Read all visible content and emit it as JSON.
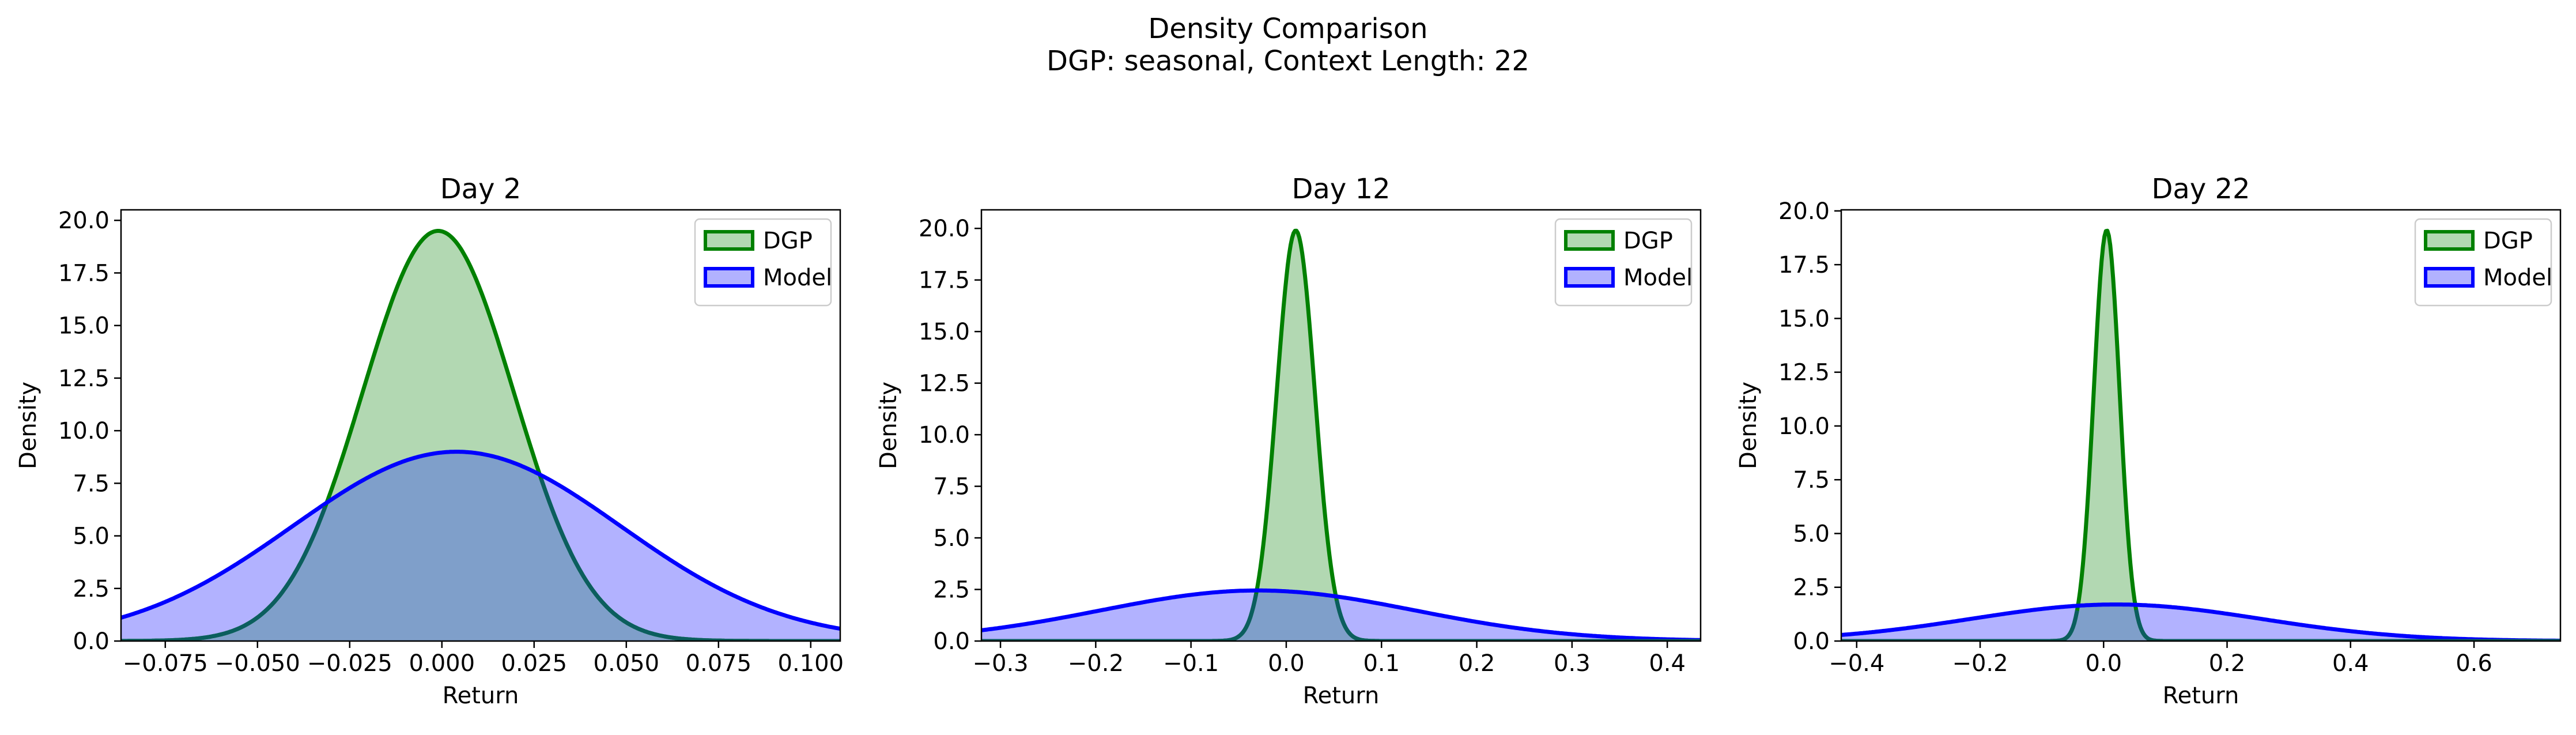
{
  "figure": {
    "title": "Density Comparison",
    "subtitle": "DGP: seasonal, Context Length: 22"
  },
  "colors": {
    "dgp_line": "#008000",
    "dgp_fill": "#b2d8b2",
    "model_line": "#0000ff",
    "model_fill": "#b2b2ff",
    "overlap_fill": "#7f9fca"
  },
  "chart_data": [
    {
      "type": "area",
      "title": "Day 2",
      "xlabel": "Return",
      "ylabel": "Density",
      "xlim": [
        -0.087,
        0.108
      ],
      "ylim": [
        0,
        20.5
      ],
      "xticks": [
        -0.075,
        -0.05,
        -0.025,
        0.0,
        0.025,
        0.05,
        0.075,
        0.1
      ],
      "xtick_labels": [
        "−0.075",
        "−0.050",
        "−0.025",
        "0.000",
        "0.025",
        "0.050",
        "0.075",
        "0.100"
      ],
      "yticks": [
        0,
        2.5,
        5,
        7.5,
        10,
        12.5,
        15,
        17.5,
        20
      ],
      "ytick_labels": [
        "0.0",
        "2.5",
        "5.0",
        "7.5",
        "10.0",
        "12.5",
        "15.0",
        "17.5",
        "20.0"
      ],
      "legend": "top-right",
      "grid": false,
      "series": [
        {
          "name": "DGP",
          "distribution": "normal",
          "mean": -0.001,
          "std": 0.0205,
          "peak": 19.5
        },
        {
          "name": "Model",
          "distribution": "normal",
          "mean": 0.004,
          "std": 0.0445,
          "peak": 9.0
        }
      ]
    },
    {
      "type": "area",
      "title": "Day 12",
      "xlabel": "Return",
      "ylabel": "Density",
      "xlim": [
        -0.32,
        0.435
      ],
      "ylim": [
        0,
        20.9
      ],
      "xticks": [
        -0.3,
        -0.2,
        -0.1,
        0.0,
        0.1,
        0.2,
        0.3,
        0.4
      ],
      "xtick_labels": [
        "−0.3",
        "−0.2",
        "−0.1",
        "0.0",
        "0.1",
        "0.2",
        "0.3",
        "0.4"
      ],
      "yticks": [
        0,
        2.5,
        5,
        7.5,
        10,
        12.5,
        15,
        17.5,
        20
      ],
      "ytick_labels": [
        "0.0",
        "2.5",
        "5.0",
        "7.5",
        "10.0",
        "12.5",
        "15.0",
        "17.5",
        "20.0"
      ],
      "legend": "top-right",
      "grid": false,
      "series": [
        {
          "name": "DGP",
          "distribution": "normal",
          "mean": 0.01,
          "std": 0.02,
          "peak": 19.9
        },
        {
          "name": "Model",
          "distribution": "normal",
          "mean": -0.03,
          "std": 0.165,
          "peak": 2.45
        }
      ]
    },
    {
      "type": "area",
      "title": "Day 22",
      "xlabel": "Return",
      "ylabel": "Density",
      "xlim": [
        -0.425,
        0.74
      ],
      "ylim": [
        0,
        20.05
      ],
      "xticks": [
        -0.4,
        -0.2,
        0.0,
        0.2,
        0.4,
        0.6
      ],
      "xtick_labels": [
        "−0.4",
        "−0.2",
        "0.0",
        "0.2",
        "0.4",
        "0.6"
      ],
      "yticks": [
        0,
        2.5,
        5,
        7.5,
        10,
        12.5,
        15,
        17.5,
        20
      ],
      "ytick_labels": [
        "0.0",
        "2.5",
        "5.0",
        "7.5",
        "10.0",
        "12.5",
        "15.0",
        "17.5",
        "20.0"
      ],
      "legend": "top-right",
      "grid": false,
      "series": [
        {
          "name": "DGP",
          "distribution": "normal",
          "mean": 0.005,
          "std": 0.021,
          "peak": 19.1
        },
        {
          "name": "Model",
          "distribution": "normal",
          "mean": 0.02,
          "std": 0.235,
          "peak": 1.7
        }
      ]
    }
  ]
}
